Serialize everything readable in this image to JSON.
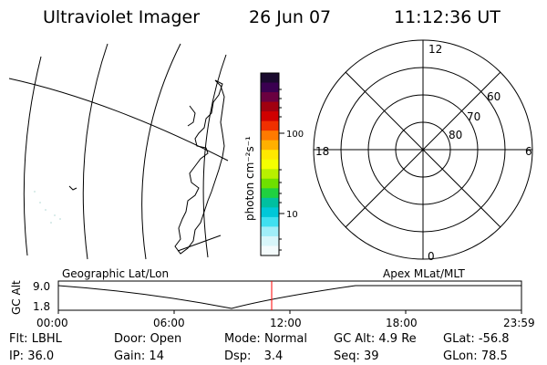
{
  "header": {
    "instrument": "Ultraviolet Imager",
    "date": "26 Jun 07",
    "time": "11:12:36 UT"
  },
  "colorbar": {
    "unit_label": "photon cm⁻²s⁻¹",
    "ticks": [
      "100",
      "10"
    ],
    "colors": [
      "#1a0a2e",
      "#3a0050",
      "#6a0040",
      "#a00010",
      "#d00000",
      "#f03000",
      "#ff7a00",
      "#ffb000",
      "#ffe800",
      "#f4ff00",
      "#b8f000",
      "#6ee000",
      "#20d040",
      "#00c0a0",
      "#00c8d8",
      "#40e0f0",
      "#a0eef8",
      "#d8f6fa",
      "#f4fbfc"
    ]
  },
  "polar_plot": {
    "mlt_labels": {
      "top": "12",
      "bottom": "0",
      "left": "18",
      "right": "6"
    },
    "mlat_labels": [
      "60",
      "70",
      "80"
    ]
  },
  "timeline": {
    "left_label": "Geographic Lat/Lon",
    "right_label": "Apex MLat/MLT",
    "y_axis_title": "GC Alt",
    "y_max": "9.0",
    "y_min": "1.8",
    "time_ticks": [
      "00:00",
      "06:00",
      "12:00",
      "18:00",
      "23:59"
    ],
    "marker_color": "#ff0000"
  },
  "status": {
    "row1": [
      {
        "key": "Flt:",
        "value": "LBHL"
      },
      {
        "key": "Door:",
        "value": "Open"
      },
      {
        "key": "Mode:",
        "value": "Normal"
      },
      {
        "key": "GC Alt:",
        "value": "4.9 Re"
      },
      {
        "key": "GLat:",
        "value": "-56.8"
      }
    ],
    "row2": [
      {
        "key": "IP:",
        "value": "36.0"
      },
      {
        "key": "Gain:",
        "value": "14"
      },
      {
        "key": "Dsp:",
        "value": "3.4"
      },
      {
        "key": "Seq:",
        "value": "39"
      },
      {
        "key": "GLon:",
        "value": "78.5"
      }
    ]
  }
}
